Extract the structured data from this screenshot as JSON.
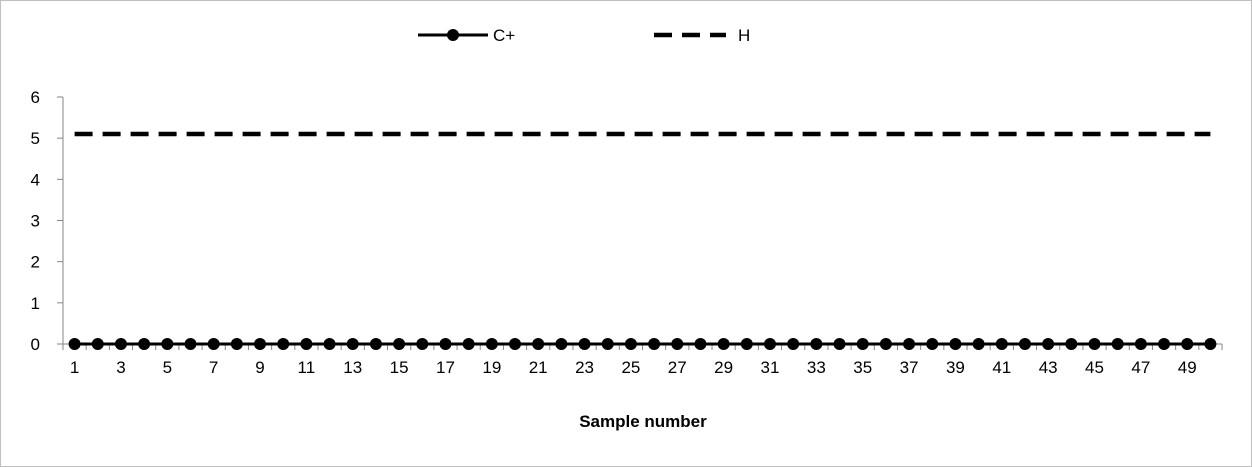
{
  "chart_data": {
    "type": "line",
    "title": "",
    "xlabel": "Sample number",
    "ylabel": "",
    "ylim": [
      0,
      6
    ],
    "yticks": [
      0,
      1,
      2,
      3,
      4,
      5,
      6
    ],
    "xtick_labels": [
      "1",
      "3",
      "5",
      "7",
      "9",
      "11",
      "13",
      "15",
      "17",
      "19",
      "21",
      "23",
      "25",
      "27",
      "29",
      "31",
      "33",
      "35",
      "37",
      "39",
      "41",
      "43",
      "45",
      "47",
      "49"
    ],
    "x": [
      1,
      2,
      3,
      4,
      5,
      6,
      7,
      8,
      9,
      10,
      11,
      12,
      13,
      14,
      15,
      16,
      17,
      18,
      19,
      20,
      21,
      22,
      23,
      24,
      25,
      26,
      27,
      28,
      29,
      30,
      31,
      32,
      33,
      34,
      35,
      36,
      37,
      38,
      39,
      40,
      41,
      42,
      43,
      44,
      45,
      46,
      47,
      48,
      49,
      50
    ],
    "series": [
      {
        "name": "C+",
        "style": "solid-marker",
        "color": "#000000",
        "values": [
          0,
          0,
          0,
          0,
          0,
          0,
          0,
          0,
          0,
          0,
          0,
          0,
          0,
          0,
          0,
          0,
          0,
          0,
          0,
          0,
          0,
          0,
          0,
          0,
          0,
          0,
          0,
          0,
          0,
          0,
          0,
          0,
          0,
          0,
          0,
          0,
          0,
          0,
          0,
          0,
          0,
          0,
          0,
          0,
          0,
          0,
          0,
          0,
          0,
          0
        ]
      },
      {
        "name": "H",
        "style": "dashed",
        "color": "#000000",
        "values": [
          5.1,
          5.1,
          5.1,
          5.1,
          5.1,
          5.1,
          5.1,
          5.1,
          5.1,
          5.1,
          5.1,
          5.1,
          5.1,
          5.1,
          5.1,
          5.1,
          5.1,
          5.1,
          5.1,
          5.1,
          5.1,
          5.1,
          5.1,
          5.1,
          5.1,
          5.1,
          5.1,
          5.1,
          5.1,
          5.1,
          5.1,
          5.1,
          5.1,
          5.1,
          5.1,
          5.1,
          5.1,
          5.1,
          5.1,
          5.1,
          5.1,
          5.1,
          5.1,
          5.1,
          5.1,
          5.1,
          5.1,
          5.1,
          5.1,
          5.1
        ]
      }
    ],
    "legend_position": "top",
    "grid": false
  }
}
